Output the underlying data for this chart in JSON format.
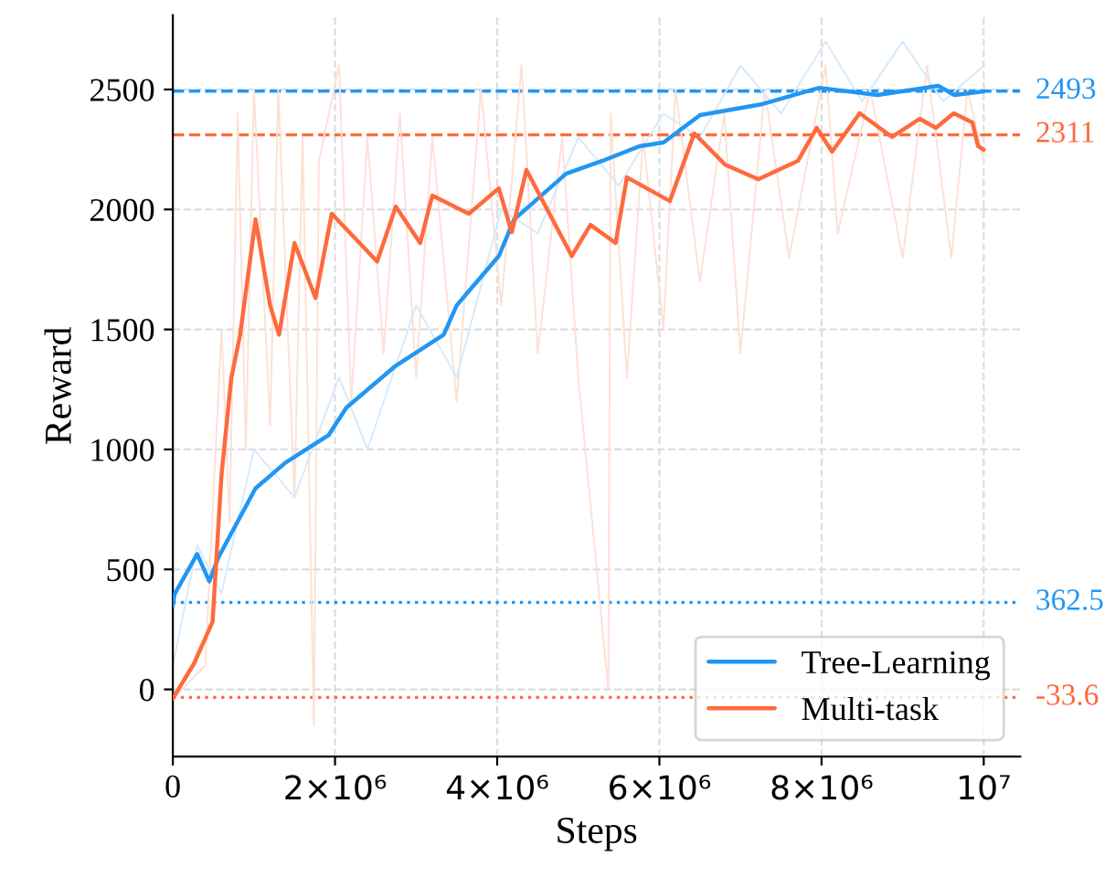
{
  "chart_data": {
    "type": "line",
    "xlabel": "Steps",
    "ylabel": "Reward",
    "xlim": [
      0,
      10450000
    ],
    "ylim": [
      -280,
      2810
    ],
    "xticks": [
      {
        "value": 0,
        "label": "0"
      },
      {
        "value": 2000000,
        "label": "2×10⁶"
      },
      {
        "value": 4000000,
        "label": "4×10⁶"
      },
      {
        "value": 6000000,
        "label": "6×10⁶"
      },
      {
        "value": 8000000,
        "label": "8×10⁶"
      },
      {
        "value": 10000000,
        "label": "10⁷"
      }
    ],
    "yticks": [
      0,
      500,
      1000,
      1500,
      2000,
      2500
    ],
    "grid": true,
    "legend": "bottom right",
    "line_style": "solid",
    "marker": "none",
    "series": [
      {
        "color": "#fde0d6",
        "x": [
          0,
          400000,
          600000,
          700000,
          800000,
          900000,
          1000000,
          1200000,
          1300000,
          1500000,
          1600000,
          1740000,
          1800000,
          2050000,
          2200000,
          2400000,
          2600000,
          2800000,
          3000000,
          3200000,
          3500000,
          3800000,
          4050000,
          4300000,
          4500000,
          4800000,
          5000000,
          5370000,
          5400000,
          5600000,
          5800000,
          6050000,
          6200000,
          6500000,
          6800000,
          7000000,
          7300000,
          7600000,
          8050000,
          8200000,
          8600000,
          9000000,
          9300000,
          9600000,
          9800000,
          10000000
        ],
        "values": [
          -40,
          100,
          1500,
          700,
          2400,
          1000,
          2500,
          1100,
          2500,
          800,
          2300,
          -150,
          2200,
          2600,
          1200,
          2300,
          1400,
          2400,
          1300,
          2300,
          1200,
          2500,
          1600,
          2600,
          1400,
          2300,
          1300,
          0,
          2400,
          1300,
          2300,
          1500,
          2500,
          1700,
          2400,
          1400,
          2500,
          1800,
          2600,
          1900,
          2500,
          1800,
          2600,
          1800,
          2500,
          2200
        ]
      },
      {
        "color": "#d6eafc",
        "x": [
          0,
          300000,
          600000,
          1000000,
          1500000,
          2050000,
          2400000,
          3000000,
          3500000,
          4050000,
          4500000,
          5000000,
          5500000,
          6050000,
          6500000,
          7000000,
          7500000,
          8050000,
          8500000,
          9000000,
          9500000,
          10000000
        ],
        "values": [
          100,
          600,
          400,
          1000,
          800,
          1300,
          1000,
          1600,
          1300,
          2000,
          1900,
          2300,
          2100,
          2400,
          2300,
          2600,
          2400,
          2700,
          2450,
          2700,
          2450,
          2600
        ]
      },
      {
        "name": "Tree-Learning",
        "color": "#2196f3",
        "x": [
          0,
          20000,
          300000,
          450000,
          560000,
          1020000,
          1390000,
          1920000,
          2140000,
          2750000,
          3340000,
          3500000,
          4020000,
          4210000,
          4850000,
          5300000,
          5760000,
          6050000,
          6500000,
          7270000,
          7970000,
          8690000,
          9440000,
          9640000,
          10000000
        ],
        "values": [
          350,
          396,
          564,
          450,
          549,
          838,
          945,
          1059,
          1174,
          1349,
          1478,
          1600,
          1806,
          1959,
          2149,
          2203,
          2264,
          2279,
          2393,
          2439,
          2507,
          2477,
          2515,
          2477,
          2492
        ]
      },
      {
        "name": "Multi-task",
        "color": "#ff6a3d",
        "x": [
          0,
          260000,
          490000,
          600000,
          720000,
          830000,
          1020000,
          1200000,
          1310000,
          1500000,
          1760000,
          1960000,
          2520000,
          2750000,
          3050000,
          3200000,
          3650000,
          4020000,
          4180000,
          4360000,
          4920000,
          5150000,
          5460000,
          5600000,
          6130000,
          6430000,
          6810000,
          7220000,
          7710000,
          7940000,
          8130000,
          8470000,
          8870000,
          9210000,
          9410000,
          9630000,
          9860000,
          9930000,
          10000000
        ],
        "values": [
          -38,
          107,
          282,
          892,
          1296,
          1478,
          1959,
          1600,
          1478,
          1860,
          1631,
          1982,
          1783,
          2012,
          1860,
          2058,
          1982,
          2088,
          1905,
          2165,
          1806,
          1936,
          1860,
          2134,
          2035,
          2317,
          2187,
          2126,
          2203,
          2340,
          2241,
          2401,
          2302,
          2378,
          2340,
          2401,
          2363,
          2264,
          2249
        ]
      }
    ],
    "ref_lines": [
      {
        "axis": "y",
        "value": 2493,
        "label": "2493",
        "color": "#2196f3",
        "line_style": "dashed"
      },
      {
        "axis": "y",
        "value": 2311,
        "label": "2311",
        "color": "#ff6a3d",
        "line_style": "dashed"
      },
      {
        "axis": "y",
        "value": 362.5,
        "label": "362.5",
        "color": "#2196f3",
        "line_style": "dotted"
      },
      {
        "axis": "y",
        "value": -33.6,
        "label": "-33.6",
        "color": "#ff6a3d",
        "line_style": "dotted"
      }
    ]
  }
}
